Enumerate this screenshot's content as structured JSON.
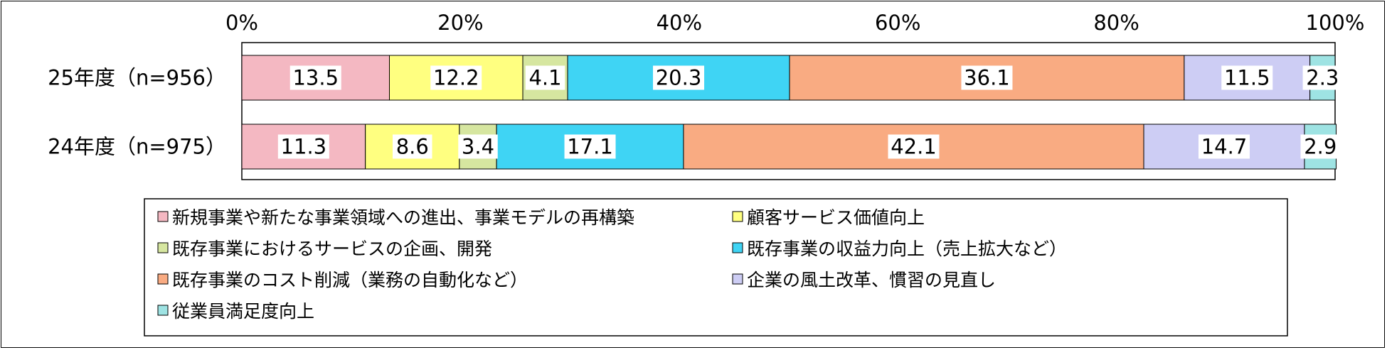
{
  "chart_data": {
    "type": "bar",
    "orientation": "horizontal",
    "stacked": true,
    "percent": true,
    "xlim": [
      0,
      100
    ],
    "xticks": [
      "0%",
      "20%",
      "40%",
      "60%",
      "80%",
      "100%"
    ],
    "categories": [
      "25年度（n=956）",
      "24年度（n=975）"
    ],
    "series": [
      {
        "name": "新規事業や新たな事業領域への進出、事業モデルの再構築",
        "color": "#f4b8c2",
        "values": [
          13.5,
          11.3
        ]
      },
      {
        "name": "顧客サービス価値向上",
        "color": "#ffff80",
        "values": [
          12.2,
          8.6
        ]
      },
      {
        "name": "既存事業におけるサービスの企画、開発",
        "color": "#d6e6a0",
        "values": [
          4.1,
          3.4
        ]
      },
      {
        "name": "既存事業の収益力向上（売上拡大など）",
        "color": "#3fd4f4",
        "values": [
          20.3,
          17.1
        ]
      },
      {
        "name": "既存事業のコスト削減（業務の自動化など）",
        "color": "#f9ab82",
        "values": [
          36.1,
          42.1
        ]
      },
      {
        "name": "企業の風土改革、慣習の見直し",
        "color": "#cdcdf4",
        "values": [
          11.5,
          14.7
        ]
      },
      {
        "name": "従業員満足度向上",
        "color": "#9ee3e3",
        "values": [
          2.3,
          2.9
        ]
      }
    ],
    "legend_position": "bottom",
    "grid": false
  }
}
